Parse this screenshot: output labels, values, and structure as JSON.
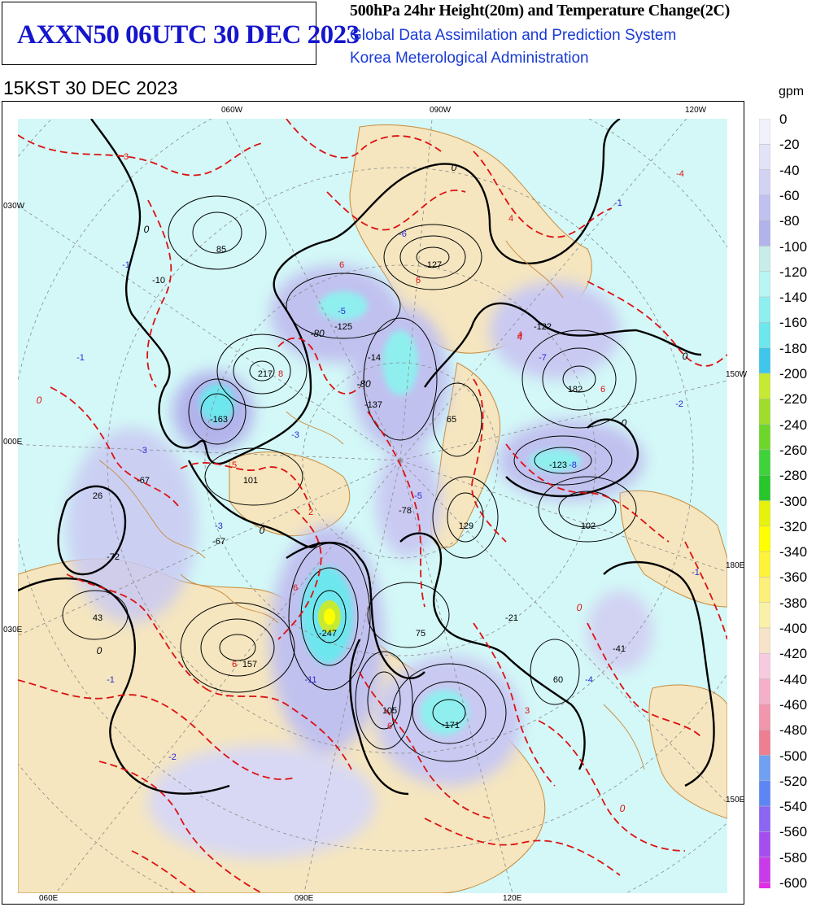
{
  "header": {
    "code_title": "AXXN50 06UTC 30 DEC 2023",
    "main_title": "500hPa 24hr Height(20m) and Temperature Change(2C)",
    "system_name": "Global Data Assimilation and Prediction System",
    "agency": "Korea Meterological Administration",
    "valid_time": "15KST 30 DEC 2023"
  },
  "map": {
    "lon_labels_top": [
      "060W",
      "090W",
      "120W"
    ],
    "lon_labels_left": [
      "030W",
      "000E",
      "030E"
    ],
    "lon_labels_right": [
      "150W",
      "180E",
      "150E"
    ],
    "lon_labels_bottom": [
      "060E",
      "090E",
      "120E"
    ],
    "colors": {
      "land": "#f5e6bf",
      "ocean": "#d3f8f7",
      "coast": "#c98a3a",
      "height_contour": "#000000",
      "temp_contour": "#dd1111"
    },
    "height_centers": [
      {
        "label": "85",
        "kind": "rise"
      },
      {
        "label": "-10",
        "kind": "fall"
      },
      {
        "label": "127",
        "kind": "rise"
      },
      {
        "label": "-125",
        "kind": "fall"
      },
      {
        "label": "-14",
        "kind": "fall"
      },
      {
        "label": "-122",
        "kind": "fall"
      },
      {
        "label": "217",
        "kind": "rise"
      },
      {
        "label": "-137",
        "kind": "fall"
      },
      {
        "label": "182",
        "kind": "rise"
      },
      {
        "label": "-163",
        "kind": "fall"
      },
      {
        "label": "65",
        "kind": "rise"
      },
      {
        "label": "-67",
        "kind": "fall"
      },
      {
        "label": "101",
        "kind": "rise"
      },
      {
        "label": "-123",
        "kind": "fall"
      },
      {
        "label": "26",
        "kind": "rise"
      },
      {
        "label": "-78",
        "kind": "fall"
      },
      {
        "label": "129",
        "kind": "rise"
      },
      {
        "label": "102",
        "kind": "rise"
      },
      {
        "label": "-67",
        "kind": "fall"
      },
      {
        "label": "-72",
        "kind": "fall"
      },
      {
        "label": "-247",
        "kind": "fall"
      },
      {
        "label": "75",
        "kind": "rise"
      },
      {
        "label": "-21",
        "kind": "fall"
      },
      {
        "label": "-41",
        "kind": "fall"
      },
      {
        "label": "43",
        "kind": "rise"
      },
      {
        "label": "157",
        "kind": "rise"
      },
      {
        "label": "60",
        "kind": "rise"
      },
      {
        "label": "105",
        "kind": "rise"
      },
      {
        "label": "-171",
        "kind": "fall"
      }
    ],
    "temp_centers": [
      {
        "label": "3",
        "kind": "warm"
      },
      {
        "label": "-4",
        "kind": "warm"
      },
      {
        "label": "-1",
        "kind": "cold"
      },
      {
        "label": "4",
        "kind": "warm"
      },
      {
        "label": "-1",
        "kind": "cold"
      },
      {
        "label": "-6",
        "kind": "cold"
      },
      {
        "label": "6",
        "kind": "warm"
      },
      {
        "label": "6",
        "kind": "warm"
      },
      {
        "label": "-5",
        "kind": "cold"
      },
      {
        "label": "4",
        "kind": "warm"
      },
      {
        "label": "-1",
        "kind": "cold"
      },
      {
        "label": "-7",
        "kind": "cold"
      },
      {
        "label": "8",
        "kind": "warm"
      },
      {
        "label": "6",
        "kind": "warm"
      },
      {
        "label": "-3",
        "kind": "cold"
      },
      {
        "label": "-2",
        "kind": "cold"
      },
      {
        "label": "-3",
        "kind": "cold"
      },
      {
        "label": "5",
        "kind": "warm"
      },
      {
        "label": "-5",
        "kind": "cold"
      },
      {
        "label": "-8",
        "kind": "cold"
      },
      {
        "label": "2",
        "kind": "warm"
      },
      {
        "label": "-3",
        "kind": "cold"
      },
      {
        "label": "-1",
        "kind": "cold"
      },
      {
        "label": "6",
        "kind": "warm"
      },
      {
        "label": "6",
        "kind": "warm"
      },
      {
        "label": "-11",
        "kind": "cold"
      },
      {
        "label": "-1",
        "kind": "cold"
      },
      {
        "label": "6",
        "kind": "warm"
      },
      {
        "label": "3",
        "kind": "warm"
      },
      {
        "label": "-4",
        "kind": "cold"
      },
      {
        "label": "-2",
        "kind": "cold"
      }
    ],
    "contour_labels": [
      "0",
      "0",
      "0",
      "0",
      "0",
      "-80",
      "-80",
      "0",
      "4",
      "0",
      "0",
      "0"
    ]
  },
  "legend": {
    "unit": "gpm",
    "entries": [
      {
        "label": "0",
        "color": "#f1f1fb"
      },
      {
        "label": "-20",
        "color": "#e3e3f7"
      },
      {
        "label": "-40",
        "color": "#d2d2f3"
      },
      {
        "label": "-60",
        "color": "#c1c1ef"
      },
      {
        "label": "-80",
        "color": "#b3b3eb"
      },
      {
        "label": "-100",
        "color": "#c8ece8"
      },
      {
        "label": "-120",
        "color": "#b8f6f3"
      },
      {
        "label": "-140",
        "color": "#8fefef"
      },
      {
        "label": "-160",
        "color": "#6ee6ee"
      },
      {
        "label": "-180",
        "color": "#3fc6ea"
      },
      {
        "label": "-200",
        "color": "#c6ea34"
      },
      {
        "label": "-220",
        "color": "#9fdc2c"
      },
      {
        "label": "-240",
        "color": "#6ed62a"
      },
      {
        "label": "-260",
        "color": "#3fd23a"
      },
      {
        "label": "-280",
        "color": "#27c62a"
      },
      {
        "label": "-300",
        "color": "#e6f20d"
      },
      {
        "label": "-320",
        "color": "#ffff00"
      },
      {
        "label": "-340",
        "color": "#fff23a"
      },
      {
        "label": "-360",
        "color": "#fdf07a"
      },
      {
        "label": "-380",
        "color": "#f9f1a9"
      },
      {
        "label": "-400",
        "color": "#f6e3c9"
      },
      {
        "label": "-420",
        "color": "#f6cbe0"
      },
      {
        "label": "-440",
        "color": "#f4b0c8"
      },
      {
        "label": "-460",
        "color": "#f097ad"
      },
      {
        "label": "-480",
        "color": "#ec7f92"
      },
      {
        "label": "-500",
        "color": "#6fa0f2"
      },
      {
        "label": "-520",
        "color": "#5d86f4"
      },
      {
        "label": "-540",
        "color": "#8a66f3"
      },
      {
        "label": "-560",
        "color": "#a64df0"
      },
      {
        "label": "-580",
        "color": "#c93be8"
      },
      {
        "label": "-600",
        "color": "#e22be6"
      }
    ]
  }
}
